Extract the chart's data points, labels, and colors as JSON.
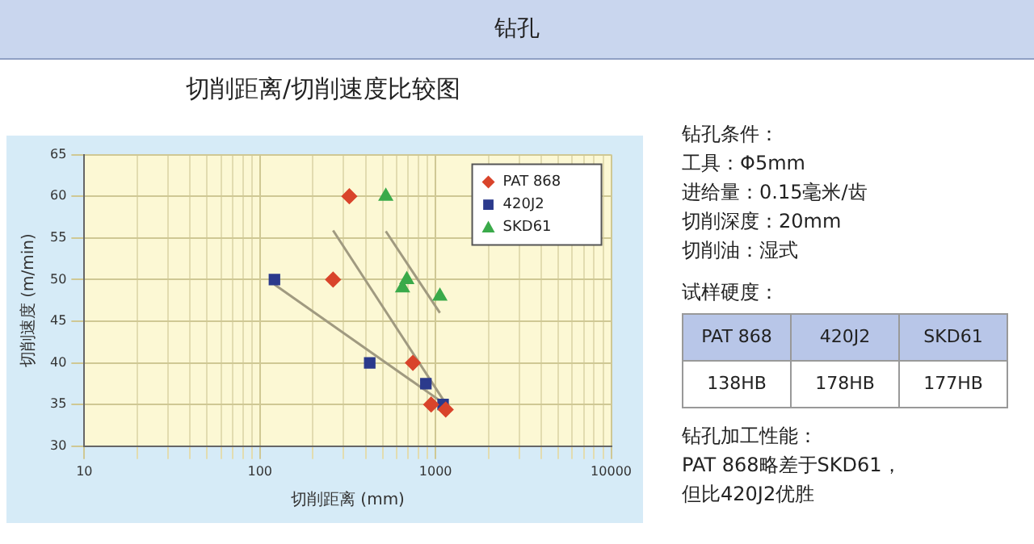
{
  "chart_data": [
    {
      "type": "scatter",
      "title": "钻孔",
      "subtitle": "切削距离/切削速度比较图",
      "xlabel": "切削距离 (mm)",
      "ylabel": "切削速度 (m/min)",
      "log": "x",
      "xlim": [
        10,
        10000
      ],
      "xticks": [
        10,
        {
          "value": 20,
          "label": null
        },
        {
          "value": 30,
          "label": null
        },
        {
          "value": 40,
          "label": null
        },
        {
          "value": 50,
          "label": null
        },
        {
          "value": 60,
          "label": null
        },
        {
          "value": 70,
          "label": null
        },
        {
          "value": 80,
          "label": null
        },
        {
          "value": 90,
          "label": null
        },
        100,
        {
          "value": 200,
          "label": null
        },
        {
          "value": 300,
          "label": null
        },
        {
          "value": 400,
          "label": null
        },
        {
          "value": 500,
          "label": null
        },
        {
          "value": 600,
          "label": null
        },
        {
          "value": 700,
          "label": null
        },
        {
          "value": 800,
          "label": null
        },
        {
          "value": 900,
          "label": null
        },
        1000,
        {
          "value": 2000,
          "label": null
        },
        {
          "value": 3000,
          "label": null
        },
        {
          "value": 4000,
          "label": null
        },
        {
          "value": 5000,
          "label": null
        },
        {
          "value": 6000,
          "label": null
        },
        {
          "value": 7000,
          "label": null
        },
        {
          "value": 8000,
          "label": null
        },
        {
          "value": 9000,
          "label": null
        },
        10000
      ],
      "ylim": [
        30,
        65
      ],
      "yticks": [
        30,
        35,
        40,
        45,
        50,
        55,
        60,
        65
      ],
      "grid": true,
      "legend": "top right",
      "series": [
        {
          "name": "PAT 868",
          "color": "#d9442b",
          "marker": "diamond",
          "x": [
            323,
            261,
            743,
            944,
            1143
          ],
          "values": [
            60,
            50,
            40,
            35,
            34.4
          ]
        },
        {
          "name": "420J2",
          "color": "#2b3a8c",
          "marker": "square",
          "x": [
            121,
            422,
            881,
            1104
          ],
          "values": [
            50,
            40,
            37.5,
            35
          ]
        },
        {
          "name": "SKD61",
          "color": "#3aaa4a",
          "marker": "triangle",
          "x": [
            521,
            649,
            686,
            1059
          ],
          "values": [
            60,
            49,
            50,
            48
          ]
        },
        {
          "type": "line",
          "color": "#a09a80",
          "marker": "none",
          "x": [
            261,
            1128
          ],
          "values": [
            55.9,
            35.3
          ]
        },
        {
          "type": "line",
          "color": "#a09a80",
          "marker": "none",
          "x": [
            121,
            1104
          ],
          "values": [
            49.4,
            35.2
          ]
        },
        {
          "type": "line",
          "color": "#a09a80",
          "marker": "none",
          "x": [
            521,
            1059
          ],
          "values": [
            55.8,
            46.0
          ]
        }
      ]
    },
    {
      "type": "other",
      "title": "钻孔条件：",
      "annotations": [
        "工具：Φ5mm",
        "进给量：0.15毫米/齿",
        "切削深度：20mm",
        "切削油：湿式"
      ]
    },
    {
      "type": "other",
      "title": "试样硬度：",
      "categories": [
        "PAT 868",
        "420J2",
        "SKD61"
      ],
      "annotations": [
        "138HB",
        "178HB",
        "177HB"
      ]
    },
    {
      "type": "other",
      "title": "钻孔加工性能：",
      "annotations": [
        "PAT 868略差于SKD61，",
        "但比420J2优胜"
      ]
    }
  ]
}
